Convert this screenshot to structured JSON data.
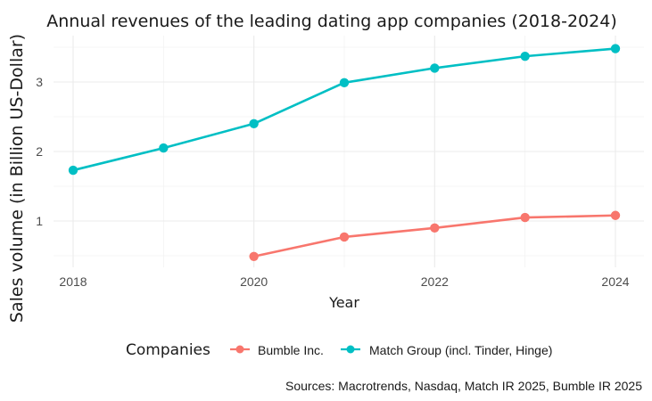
{
  "chart_data": {
    "type": "line",
    "title": "Annual revenues of the leading dating app companies (2018-2024)",
    "xlabel": "Year",
    "ylabel": "Sales volume (in Billion US-Dollar)",
    "x_ticks": [
      "2018",
      "2020",
      "2022",
      "2024"
    ],
    "y_ticks": [
      "1",
      "2",
      "3"
    ],
    "xlim": [
      2017.85,
      2024.3
    ],
    "ylim": [
      0.42,
      3.55
    ],
    "grid": true,
    "legend": {
      "title": "Companies",
      "position": "bottom",
      "entries": [
        "Bumble Inc.",
        "Match Group (incl. Tinder, Hinge)"
      ]
    },
    "caption": "Sources: Macrotrends, Nasdaq, Match IR 2025, Bumble IR 2025",
    "series": [
      {
        "name": "Bumble Inc.",
        "color": "#F8766D",
        "x": [
          2020,
          2021,
          2022,
          2023,
          2024
        ],
        "values": [
          0.49,
          0.77,
          0.9,
          1.05,
          1.08
        ]
      },
      {
        "name": "Match Group (incl. Tinder, Hinge)",
        "color": "#00BFC4",
        "x": [
          2018,
          2019,
          2020,
          2021,
          2022,
          2023,
          2024
        ],
        "values": [
          1.73,
          2.05,
          2.4,
          2.99,
          3.2,
          3.37,
          3.48
        ]
      }
    ]
  }
}
